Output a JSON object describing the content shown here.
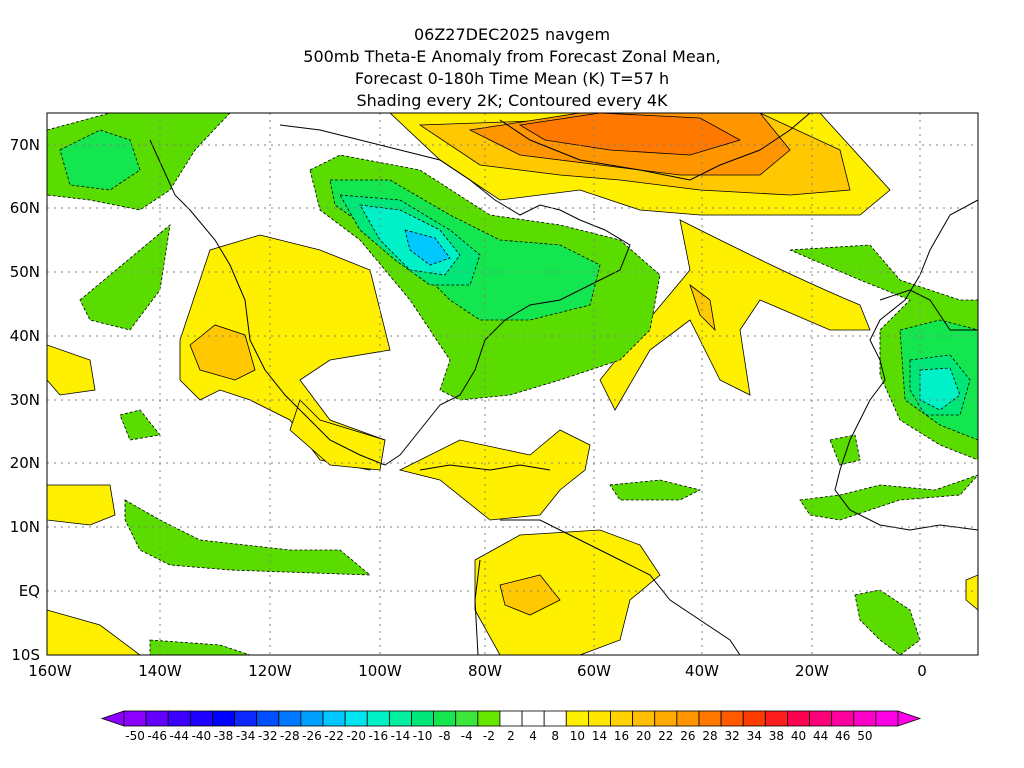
{
  "title": {
    "line1": "06Z27DEC2025 navgem",
    "line2": "500mb Theta-E Anomaly from Forecast Zonal Mean,",
    "line3": "Forecast 0-180h Time Mean (K) T=57 h",
    "line4": "Shading every 2K; Contoured every 4K"
  },
  "map": {
    "lon_range": [
      -160,
      10
    ],
    "lat_range": [
      -10,
      75
    ],
    "lon_labels": [
      "160W",
      "140W",
      "120W",
      "100W",
      "80W",
      "60W",
      "40W",
      "20W",
      "0"
    ],
    "lat_labels": [
      "10S",
      "EQ",
      "10N",
      "20N",
      "30N",
      "40N",
      "50N",
      "60N",
      "70N"
    ],
    "grid": "dotted",
    "colors": {
      "purple": "#a000e6",
      "blue": "#1e3cff",
      "cyan": "#00dcdc",
      "teal": "#00e68c",
      "green": "#3ce63c",
      "lime": "#5adc00",
      "yellow": "#fff000",
      "gold": "#ffc800",
      "orange": "#ff8c00",
      "red": "#ff1e1e",
      "magenta": "#ff00c8"
    }
  },
  "colorbar": {
    "labels": [
      "-50",
      "-46",
      "-44",
      "-40",
      "-38",
      "-34",
      "-32",
      "-28",
      "-26",
      "-22",
      "-20",
      "-16",
      "-14",
      "-10",
      "-8",
      "-4",
      "-2",
      "2",
      "4",
      "8",
      "10",
      "14",
      "16",
      "20",
      "22",
      "26",
      "28",
      "32",
      "34",
      "38",
      "40",
      "44",
      "46",
      "50"
    ],
    "colors": [
      "#8c00ff",
      "#6400ff",
      "#3c00ff",
      "#1e00ff",
      "#0000ff",
      "#0a28ff",
      "#0050ff",
      "#0078ff",
      "#00a0ff",
      "#00c8ff",
      "#00e6f0",
      "#00f0c8",
      "#00f0a0",
      "#00e678",
      "#14e650",
      "#3ce63c",
      "#64e600",
      "#ffffff",
      "#ffffff",
      "#ffffff",
      "#fff000",
      "#ffe600",
      "#ffd200",
      "#ffbe00",
      "#ffaa00",
      "#ff9600",
      "#ff7800",
      "#ff5a00",
      "#ff3c00",
      "#ff1e1e",
      "#ff0050",
      "#ff0078",
      "#ff00a0",
      "#ff00c8",
      "#ff00e6"
    ]
  }
}
